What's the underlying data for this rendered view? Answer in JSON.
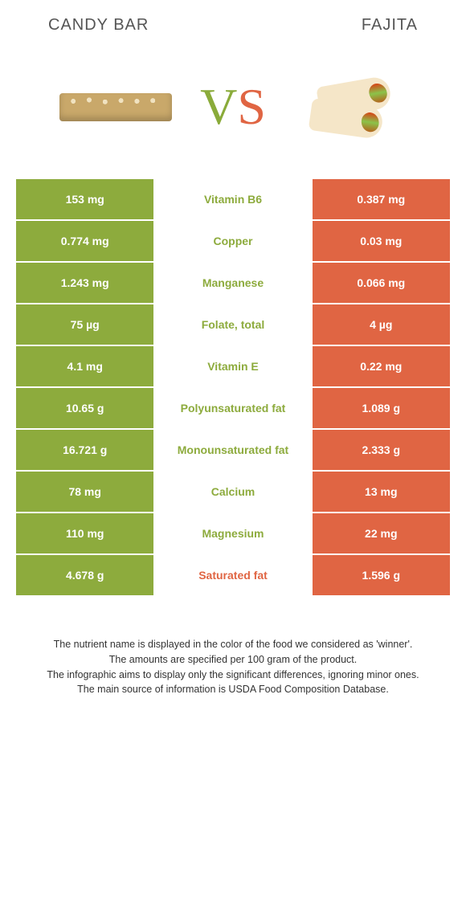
{
  "header": {
    "left_title": "CANDY BAR",
    "right_title": "FAJITA"
  },
  "vs": {
    "v": "V",
    "s": "S"
  },
  "colors": {
    "green": "#8dab3d",
    "orange": "#e06543",
    "mid_green_text": "#8dab3d",
    "mid_orange_text": "#e06543"
  },
  "rows": [
    {
      "left": "153 mg",
      "mid": "Vitamin B6",
      "right": "0.387 mg",
      "mid_color": "green"
    },
    {
      "left": "0.774 mg",
      "mid": "Copper",
      "right": "0.03 mg",
      "mid_color": "green"
    },
    {
      "left": "1.243 mg",
      "mid": "Manganese",
      "right": "0.066 mg",
      "mid_color": "green"
    },
    {
      "left": "75 µg",
      "mid": "Folate, total",
      "right": "4 µg",
      "mid_color": "green"
    },
    {
      "left": "4.1 mg",
      "mid": "Vitamin E",
      "right": "0.22 mg",
      "mid_color": "green"
    },
    {
      "left": "10.65 g",
      "mid": "Polyunsaturated fat",
      "right": "1.089 g",
      "mid_color": "green"
    },
    {
      "left": "16.721 g",
      "mid": "Monounsaturated fat",
      "right": "2.333 g",
      "mid_color": "green"
    },
    {
      "left": "78 mg",
      "mid": "Calcium",
      "right": "13 mg",
      "mid_color": "green"
    },
    {
      "left": "110 mg",
      "mid": "Magnesium",
      "right": "22 mg",
      "mid_color": "green"
    },
    {
      "left": "4.678 g",
      "mid": "Saturated fat",
      "right": "1.596 g",
      "mid_color": "orange"
    }
  ],
  "footer": {
    "line1": "The nutrient name is displayed in the color of the food we considered as 'winner'.",
    "line2": "The amounts are specified per 100 gram of the product.",
    "line3": "The infographic aims to display only the significant differences, ignoring minor ones.",
    "line4": "The main source of information is USDA Food Composition Database."
  }
}
